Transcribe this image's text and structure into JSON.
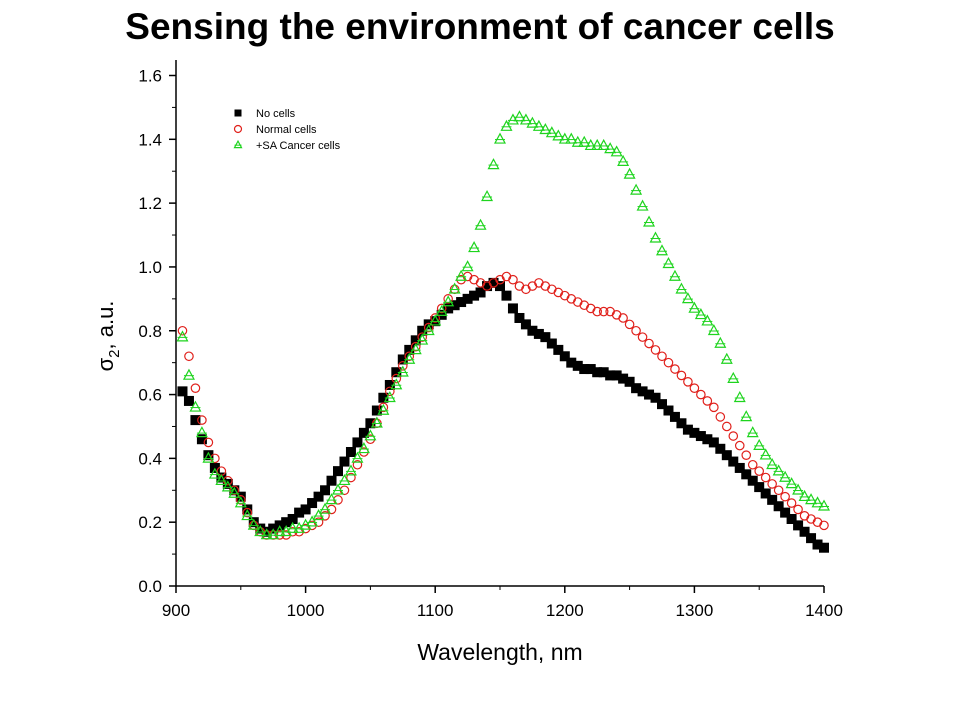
{
  "title": "Sensing the environment of cancer cells",
  "chart_data": {
    "type": "scatter",
    "xlabel": "Wavelength, nm",
    "ylabel_symbol": "σ",
    "ylabel_subscript": "2",
    "ylabel_suffix": ", a.u.",
    "xlim": [
      900,
      1400
    ],
    "ylim": [
      0.0,
      1.65
    ],
    "xticks": [
      900,
      1000,
      1100,
      1200,
      1300,
      1400
    ],
    "xtick_labels": [
      "900",
      "1000",
      "1100",
      "1200",
      "1300",
      "1400"
    ],
    "yticks": [
      0.0,
      0.2,
      0.4,
      0.6,
      0.8,
      1.0,
      1.2,
      1.4,
      1.6
    ],
    "ytick_labels": [
      "0.0",
      "0.2",
      "0.4",
      "0.6",
      "0.8",
      "1.0",
      "1.2",
      "1.4",
      "1.6"
    ],
    "grid": false,
    "legend_position": "top-left",
    "series": [
      {
        "name": "No cells",
        "marker": "filled-square",
        "color": "#000000",
        "x": [
          905,
          910,
          915,
          920,
          925,
          930,
          935,
          940,
          945,
          950,
          955,
          960,
          965,
          970,
          975,
          980,
          985,
          990,
          995,
          1000,
          1005,
          1010,
          1015,
          1020,
          1025,
          1030,
          1035,
          1040,
          1045,
          1050,
          1055,
          1060,
          1065,
          1070,
          1075,
          1080,
          1085,
          1090,
          1095,
          1100,
          1105,
          1110,
          1115,
          1120,
          1125,
          1130,
          1135,
          1140,
          1145,
          1150,
          1155,
          1160,
          1165,
          1170,
          1175,
          1180,
          1185,
          1190,
          1195,
          1200,
          1205,
          1210,
          1215,
          1220,
          1225,
          1230,
          1235,
          1240,
          1245,
          1250,
          1255,
          1260,
          1265,
          1270,
          1275,
          1280,
          1285,
          1290,
          1295,
          1300,
          1305,
          1310,
          1315,
          1320,
          1325,
          1330,
          1335,
          1340,
          1345,
          1350,
          1355,
          1360,
          1365,
          1370,
          1375,
          1380,
          1385,
          1390,
          1395,
          1400
        ],
        "y": [
          0.61,
          0.58,
          0.52,
          0.46,
          0.41,
          0.37,
          0.34,
          0.32,
          0.3,
          0.28,
          0.24,
          0.2,
          0.18,
          0.17,
          0.18,
          0.19,
          0.2,
          0.21,
          0.23,
          0.24,
          0.26,
          0.28,
          0.3,
          0.33,
          0.36,
          0.39,
          0.42,
          0.45,
          0.48,
          0.51,
          0.55,
          0.59,
          0.63,
          0.67,
          0.71,
          0.74,
          0.77,
          0.8,
          0.82,
          0.83,
          0.85,
          0.87,
          0.88,
          0.89,
          0.9,
          0.91,
          0.92,
          0.94,
          0.95,
          0.94,
          0.91,
          0.87,
          0.84,
          0.82,
          0.8,
          0.79,
          0.78,
          0.76,
          0.74,
          0.72,
          0.7,
          0.69,
          0.68,
          0.68,
          0.67,
          0.67,
          0.66,
          0.66,
          0.65,
          0.64,
          0.62,
          0.61,
          0.6,
          0.59,
          0.57,
          0.55,
          0.53,
          0.51,
          0.49,
          0.48,
          0.47,
          0.46,
          0.45,
          0.43,
          0.41,
          0.39,
          0.37,
          0.35,
          0.33,
          0.31,
          0.29,
          0.27,
          0.25,
          0.23,
          0.21,
          0.19,
          0.17,
          0.15,
          0.13,
          0.12
        ]
      },
      {
        "name": "Normal cells",
        "marker": "open-circle",
        "color": "#e0201b",
        "x": [
          905,
          910,
          915,
          920,
          925,
          930,
          935,
          940,
          945,
          950,
          955,
          960,
          965,
          970,
          975,
          980,
          985,
          990,
          995,
          1000,
          1005,
          1010,
          1015,
          1020,
          1025,
          1030,
          1035,
          1040,
          1045,
          1050,
          1055,
          1060,
          1065,
          1070,
          1075,
          1080,
          1085,
          1090,
          1095,
          1100,
          1105,
          1110,
          1115,
          1120,
          1125,
          1130,
          1135,
          1140,
          1145,
          1150,
          1155,
          1160,
          1165,
          1170,
          1175,
          1180,
          1185,
          1190,
          1195,
          1200,
          1205,
          1210,
          1215,
          1220,
          1225,
          1230,
          1235,
          1240,
          1245,
          1250,
          1255,
          1260,
          1265,
          1270,
          1275,
          1280,
          1285,
          1290,
          1295,
          1300,
          1305,
          1310,
          1315,
          1320,
          1325,
          1330,
          1335,
          1340,
          1345,
          1350,
          1355,
          1360,
          1365,
          1370,
          1375,
          1380,
          1385,
          1390,
          1395,
          1400
        ],
        "y": [
          0.8,
          0.72,
          0.62,
          0.52,
          0.45,
          0.4,
          0.36,
          0.33,
          0.3,
          0.27,
          0.23,
          0.19,
          0.17,
          0.16,
          0.16,
          0.16,
          0.16,
          0.17,
          0.17,
          0.18,
          0.19,
          0.2,
          0.22,
          0.24,
          0.27,
          0.3,
          0.34,
          0.38,
          0.42,
          0.46,
          0.51,
          0.56,
          0.61,
          0.65,
          0.69,
          0.72,
          0.75,
          0.78,
          0.81,
          0.84,
          0.87,
          0.9,
          0.93,
          0.96,
          0.97,
          0.96,
          0.95,
          0.94,
          0.95,
          0.96,
          0.97,
          0.96,
          0.94,
          0.93,
          0.94,
          0.95,
          0.94,
          0.93,
          0.92,
          0.91,
          0.9,
          0.89,
          0.88,
          0.87,
          0.86,
          0.86,
          0.86,
          0.85,
          0.84,
          0.82,
          0.8,
          0.78,
          0.76,
          0.74,
          0.72,
          0.7,
          0.68,
          0.66,
          0.64,
          0.62,
          0.6,
          0.58,
          0.56,
          0.53,
          0.5,
          0.47,
          0.44,
          0.41,
          0.38,
          0.36,
          0.34,
          0.32,
          0.3,
          0.28,
          0.26,
          0.24,
          0.22,
          0.21,
          0.2,
          0.19
        ]
      },
      {
        "name": "+SA Cancer cells",
        "marker": "open-triangle",
        "color": "#1ed41e",
        "x": [
          905,
          910,
          915,
          920,
          925,
          930,
          935,
          940,
          945,
          950,
          955,
          960,
          965,
          970,
          975,
          980,
          985,
          990,
          995,
          1000,
          1005,
          1010,
          1015,
          1020,
          1025,
          1030,
          1035,
          1040,
          1045,
          1050,
          1055,
          1060,
          1065,
          1070,
          1075,
          1080,
          1085,
          1090,
          1095,
          1100,
          1105,
          1110,
          1115,
          1120,
          1125,
          1130,
          1135,
          1140,
          1145,
          1150,
          1155,
          1160,
          1165,
          1170,
          1175,
          1180,
          1185,
          1190,
          1195,
          1200,
          1205,
          1210,
          1215,
          1220,
          1225,
          1230,
          1235,
          1240,
          1245,
          1250,
          1255,
          1260,
          1265,
          1270,
          1275,
          1280,
          1285,
          1290,
          1295,
          1300,
          1305,
          1310,
          1315,
          1320,
          1325,
          1330,
          1335,
          1340,
          1345,
          1350,
          1355,
          1360,
          1365,
          1370,
          1375,
          1380,
          1385,
          1390,
          1395,
          1400
        ],
        "y": [
          0.78,
          0.66,
          0.56,
          0.48,
          0.4,
          0.35,
          0.33,
          0.31,
          0.29,
          0.26,
          0.22,
          0.19,
          0.17,
          0.16,
          0.16,
          0.17,
          0.17,
          0.18,
          0.18,
          0.19,
          0.2,
          0.22,
          0.24,
          0.27,
          0.3,
          0.33,
          0.36,
          0.4,
          0.43,
          0.47,
          0.51,
          0.55,
          0.59,
          0.63,
          0.67,
          0.71,
          0.74,
          0.77,
          0.8,
          0.83,
          0.86,
          0.89,
          0.93,
          0.97,
          1.0,
          1.06,
          1.13,
          1.22,
          1.32,
          1.4,
          1.44,
          1.46,
          1.47,
          1.46,
          1.45,
          1.44,
          1.43,
          1.42,
          1.41,
          1.4,
          1.4,
          1.39,
          1.39,
          1.38,
          1.38,
          1.38,
          1.37,
          1.36,
          1.33,
          1.29,
          1.24,
          1.19,
          1.14,
          1.09,
          1.05,
          1.01,
          0.97,
          0.93,
          0.9,
          0.87,
          0.85,
          0.83,
          0.8,
          0.76,
          0.71,
          0.65,
          0.59,
          0.53,
          0.48,
          0.44,
          0.41,
          0.38,
          0.36,
          0.34,
          0.32,
          0.3,
          0.28,
          0.27,
          0.26,
          0.25
        ]
      }
    ]
  }
}
